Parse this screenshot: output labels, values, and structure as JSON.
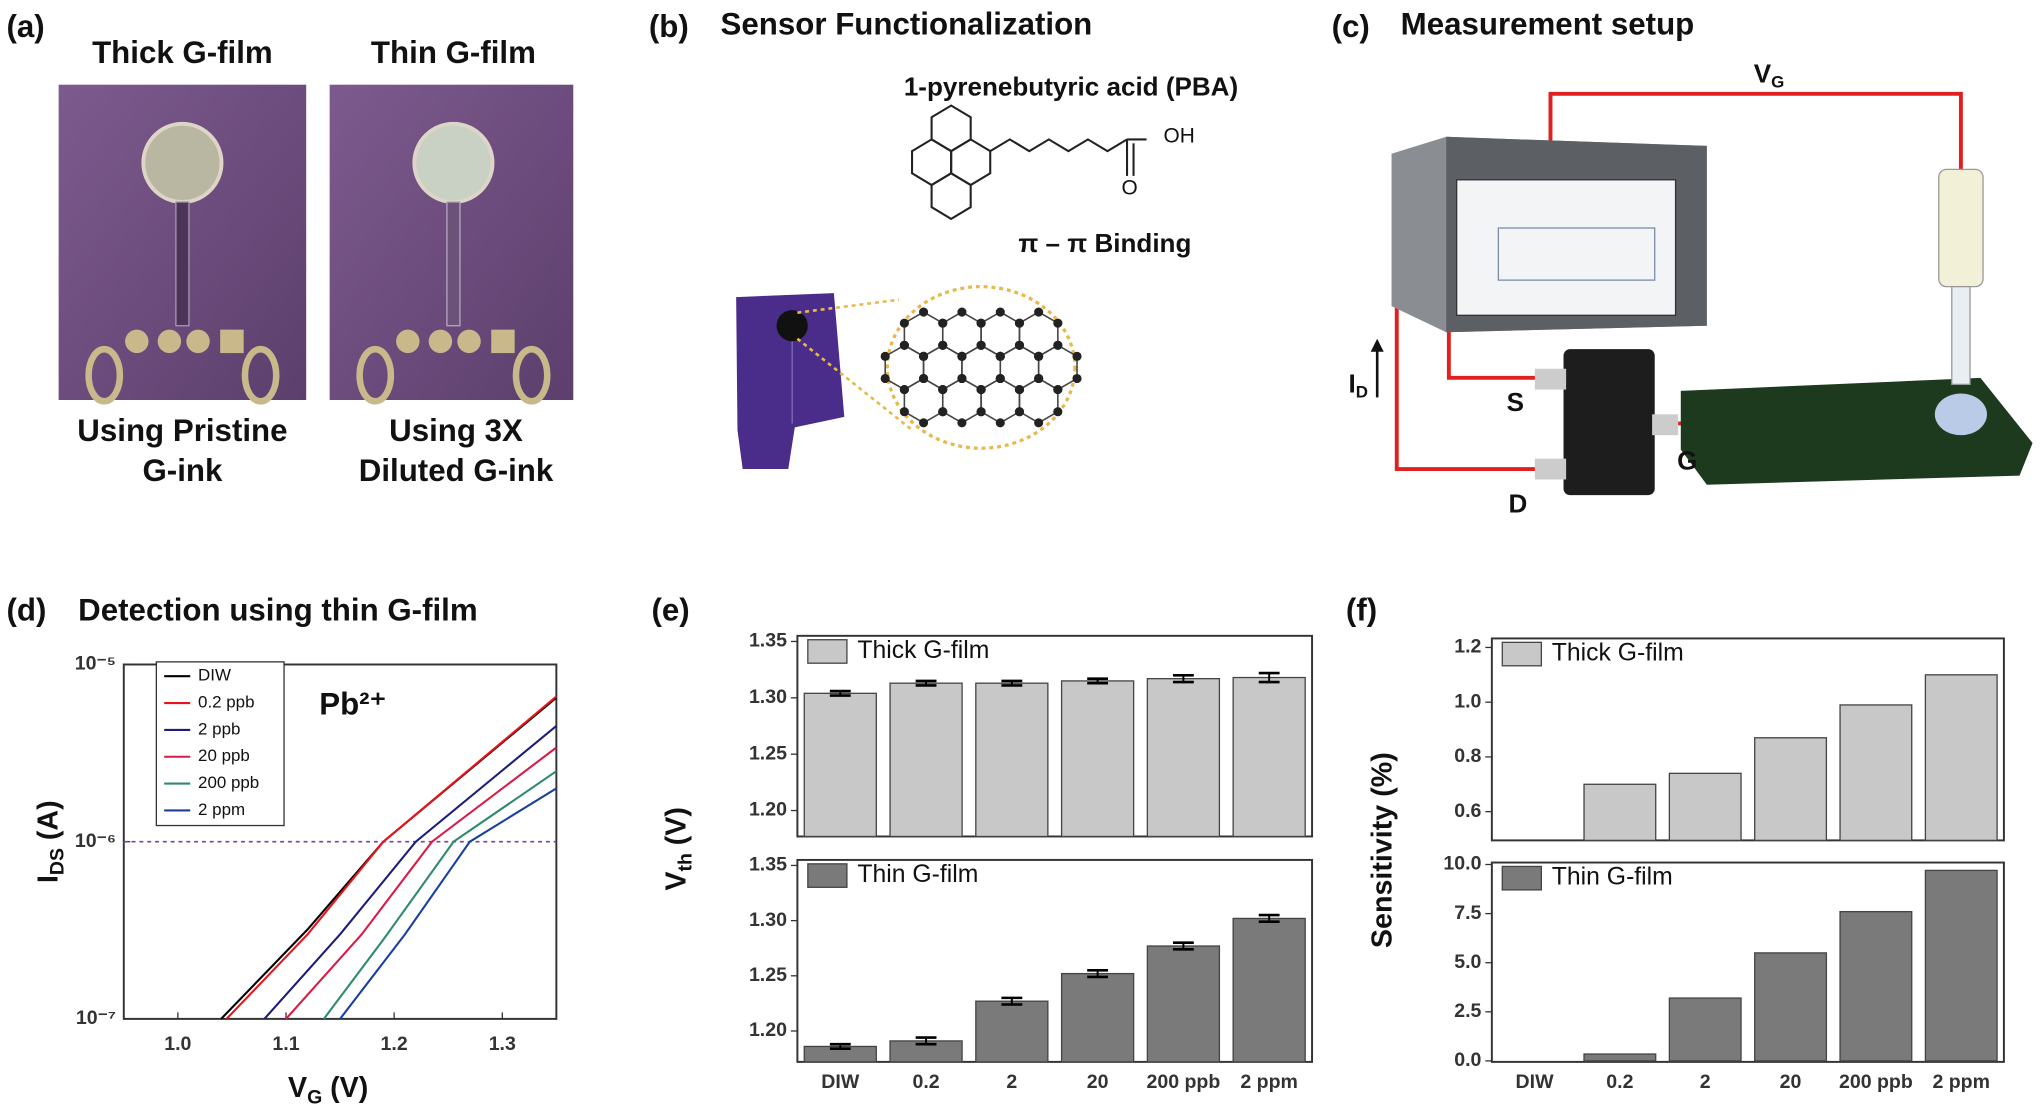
{
  "panel_a": {
    "label": "(a)",
    "titles": [
      "Thick G-film",
      "Thin G-film"
    ],
    "captions": [
      [
        "Using Pristine",
        "G-ink"
      ],
      [
        "Using 3X",
        "Diluted G-ink"
      ]
    ]
  },
  "panel_b": {
    "label": "(b)",
    "title": "Sensor Functionalization",
    "molecule": "1-pyrenebutyric acid (PBA)",
    "binding": "π – π Binding",
    "atoms": [
      "OH",
      "O"
    ]
  },
  "panel_c": {
    "label": "(c)",
    "title": "Measurement setup",
    "gate_voltage": {
      "main": "V",
      "sub": "G"
    },
    "drain_current": {
      "main": "I",
      "sub": "D"
    },
    "terminals": [
      "S",
      "G",
      "D"
    ]
  },
  "chart_data": [
    {
      "type": "line",
      "label": "(d)",
      "title": "Detection using thin G-film",
      "annotation": "Pb²⁺",
      "xlabel": {
        "main": "V",
        "sub": "G",
        "unit": "(V)"
      },
      "ylabel": {
        "main": "I",
        "sub": "DS",
        "unit": "(A)"
      },
      "log_y": true,
      "xlim": [
        0.95,
        1.35
      ],
      "ylim": [
        1e-07,
        1e-05
      ],
      "xticks": [
        {
          "value": 1,
          "label": "1.0"
        },
        1.1,
        1.2,
        1.3
      ],
      "yticks": [
        {
          "value": 1e-07,
          "label": "10⁻⁷"
        },
        {
          "value": 1e-06,
          "label": "10⁻⁶"
        },
        {
          "value": 1e-05,
          "label": "10⁻⁵"
        }
      ],
      "reference_line": {
        "value": 1e-06,
        "color": "#7b3f9e"
      },
      "series": [
        {
          "name": "DIW",
          "color": "#000000",
          "x": [
            1.04,
            1.12,
            1.19,
            1.35
          ],
          "values": [
            1e-07,
            3.2e-07,
            1e-06,
            6.5e-06
          ]
        },
        {
          "name": "0.2 ppb",
          "color": "#e8141c",
          "x": [
            1.045,
            1.12,
            1.19,
            1.35
          ],
          "values": [
            1e-07,
            3e-07,
            1e-06,
            6.6e-06
          ]
        },
        {
          "name": "2 ppb",
          "color": "#1c1c7a",
          "x": [
            1.08,
            1.15,
            1.22,
            1.35
          ],
          "values": [
            1e-07,
            3e-07,
            1e-06,
            4.5e-06
          ]
        },
        {
          "name": "20 ppb",
          "color": "#d81b48",
          "x": [
            1.1,
            1.17,
            1.235,
            1.35
          ],
          "values": [
            1e-07,
            3e-07,
            1e-06,
            3.4e-06
          ]
        },
        {
          "name": "200 ppb",
          "color": "#2e8b6a",
          "x": [
            1.135,
            1.19,
            1.255,
            1.35
          ],
          "values": [
            1e-07,
            2.8e-07,
            1e-06,
            2.5e-06
          ]
        },
        {
          "name": "2 ppm",
          "color": "#1a3fa0",
          "x": [
            1.15,
            1.21,
            1.27,
            1.35
          ],
          "values": [
            1e-07,
            3e-07,
            1e-06,
            2e-06
          ]
        }
      ]
    },
    {
      "type": "bar",
      "label": "(e)",
      "ylabel": {
        "main": "V",
        "sub": "th",
        "unit": "(V)"
      },
      "categories": [
        "DIW",
        "0.2",
        "2",
        "20",
        "200 ppb",
        "2 ppm"
      ],
      "subplots": [
        {
          "name": "Thick G-film",
          "color": "#c8c8c8",
          "ylim": [
            1.177,
            1.355
          ],
          "yticks": [
            {
              "value": 1.2,
              "label": "1.20"
            },
            1.25,
            {
              "value": 1.3,
              "label": "1.30"
            },
            1.35
          ],
          "values": [
            1.304,
            1.313,
            1.313,
            1.315,
            1.317,
            1.318
          ],
          "errors": [
            0.002,
            0.002,
            0.002,
            0.002,
            0.003,
            0.004
          ]
        },
        {
          "name": "Thin G-film",
          "color": "#7a7a7a",
          "ylim": [
            1.172,
            1.355
          ],
          "yticks": [
            {
              "value": 1.2,
              "label": "1.20"
            },
            1.25,
            {
              "value": 1.3,
              "label": "1.30"
            },
            1.35
          ],
          "values": [
            1.186,
            1.191,
            1.227,
            1.252,
            1.277,
            1.302
          ],
          "errors": [
            0.002,
            0.003,
            0.003,
            0.003,
            0.003,
            0.003
          ]
        }
      ]
    },
    {
      "type": "bar",
      "label": "(f)",
      "ylabel": "Sensitivity (%)",
      "categories": [
        "DIW",
        "0.2",
        "2",
        "20",
        "200 ppb",
        "2 ppm"
      ],
      "subplots": [
        {
          "name": "Thick G-film",
          "color": "#c8c8c8",
          "ylim": [
            0.495,
            1.233
          ],
          "yticks": [
            0.6,
            0.8,
            {
              "value": 1,
              "label": "1.0"
            },
            1.2
          ],
          "values": [
            null,
            0.7,
            0.74,
            0.87,
            0.99,
            1.1
          ]
        },
        {
          "name": "Thin G-film",
          "color": "#7a7a7a",
          "ylim": [
            -0.05,
            10.1
          ],
          "yticks": [
            {
              "value": 0,
              "label": "0.0"
            },
            2.5,
            {
              "value": 5,
              "label": "5.0"
            },
            7.5,
            {
              "value": 10,
              "label": "10.0"
            }
          ],
          "values": [
            0,
            0.35,
            3.2,
            5.5,
            7.6,
            9.7
          ]
        }
      ]
    }
  ]
}
